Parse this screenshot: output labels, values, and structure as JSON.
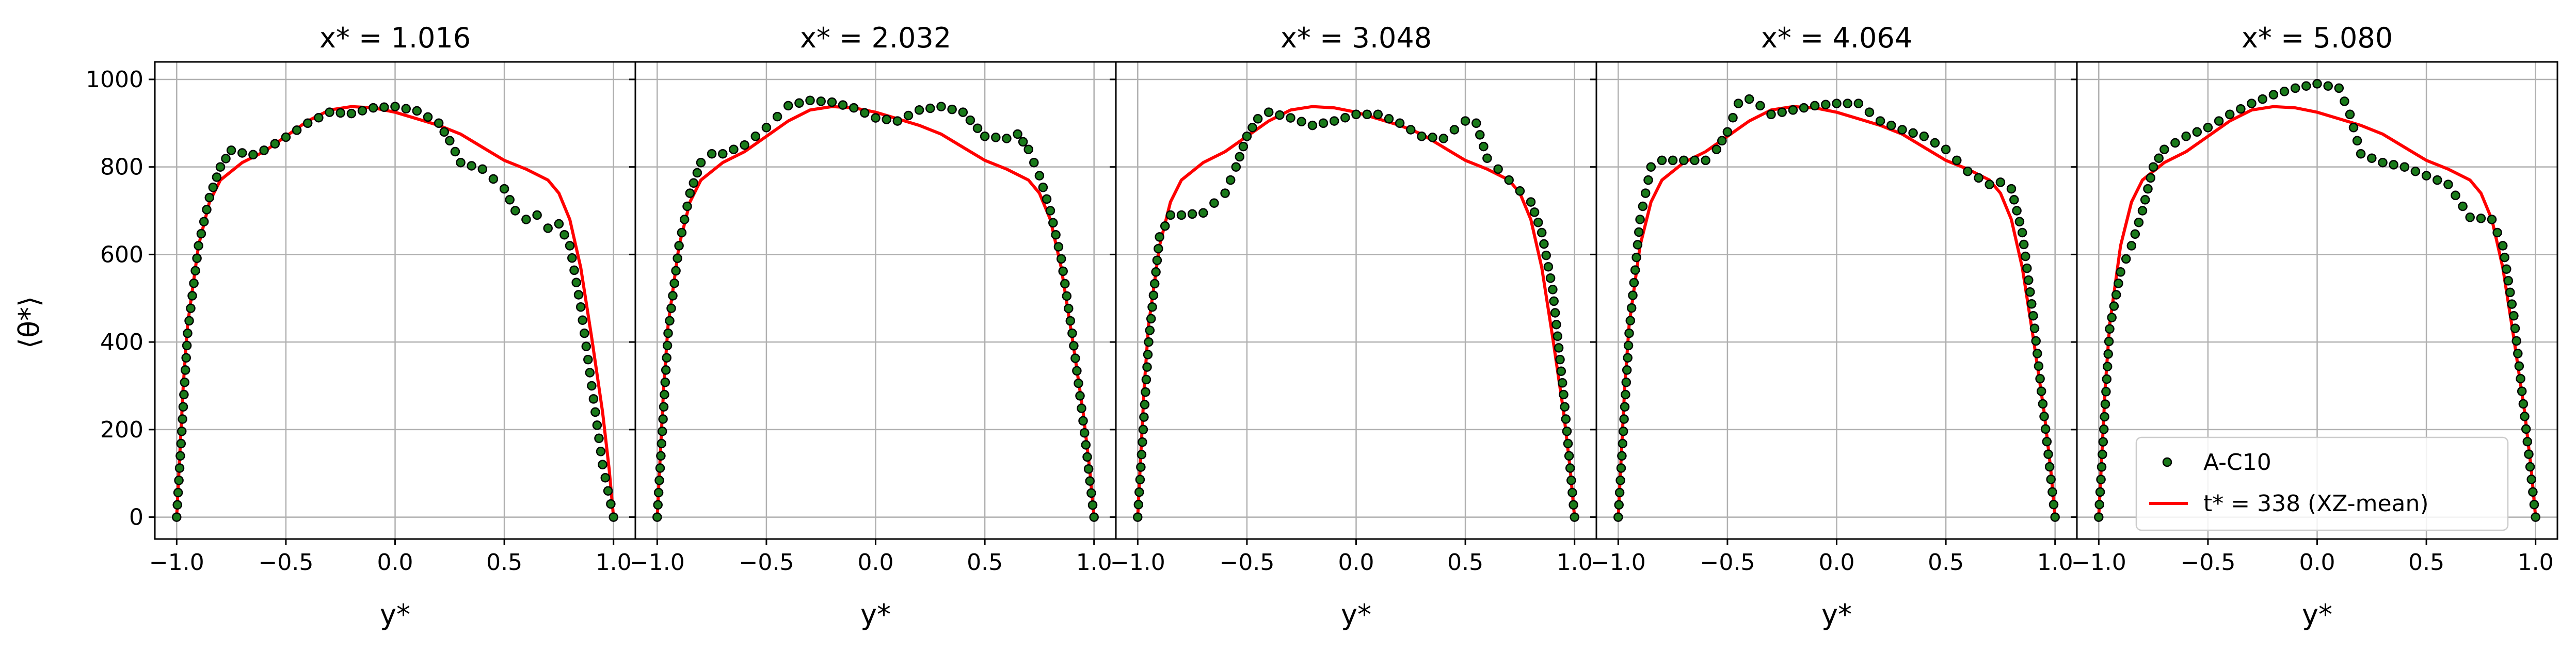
{
  "figure": {
    "ylabel": "⟨θ*⟩",
    "xlabel": "y*"
  },
  "legend": {
    "placement": "lower-right",
    "entries": [
      "A-C10",
      "t* = 338 (XZ-mean)"
    ]
  },
  "colors": {
    "points_fill": "#1a7a1a",
    "points_edge": "#000000",
    "line": "#ff0000",
    "grid": "#b0b0b0"
  },
  "chart_data": [
    {
      "type": "line",
      "title": "x* = 1.016",
      "xlabel": "y*",
      "ylabel": "⟨θ*⟩",
      "xlim": [
        -1.1,
        1.1
      ],
      "ylim": [
        -50,
        1040
      ],
      "xticks": [
        -1.0,
        -0.5,
        0.0,
        0.5,
        1.0
      ],
      "yticks": [
        0,
        200,
        400,
        600,
        800,
        1000
      ],
      "grid": true,
      "series": [
        {
          "name": "A-C10",
          "style": "points",
          "x": [
            -1.0,
            -0.95,
            -0.9,
            -0.85,
            -0.8,
            -0.75,
            -0.7,
            -0.65,
            -0.6,
            -0.5,
            -0.4,
            -0.3,
            -0.2,
            -0.1,
            0.0,
            0.1,
            0.2,
            0.25,
            0.3,
            0.4,
            0.5,
            0.55,
            0.6,
            0.65,
            0.7,
            0.75,
            0.8,
            0.85,
            0.9,
            0.95,
            1.0
          ],
          "y": [
            0,
            420,
            620,
            730,
            800,
            838,
            832,
            828,
            838,
            868,
            900,
            925,
            922,
            935,
            938,
            928,
            900,
            860,
            810,
            795,
            750,
            700,
            680,
            690,
            660,
            670,
            620,
            480,
            300,
            120,
            0
          ]
        },
        {
          "name": "t* = 338 (XZ-mean)",
          "style": "line",
          "x": [
            -1.0,
            -0.97,
            -0.95,
            -0.9,
            -0.85,
            -0.8,
            -0.7,
            -0.6,
            -0.5,
            -0.4,
            -0.3,
            -0.2,
            -0.1,
            0.0,
            0.1,
            0.2,
            0.3,
            0.4,
            0.5,
            0.6,
            0.7,
            0.75,
            0.8,
            0.85,
            0.9,
            0.95,
            0.98,
            1.0
          ],
          "y": [
            0,
            300,
            440,
            620,
            720,
            770,
            810,
            835,
            870,
            905,
            930,
            938,
            935,
            925,
            910,
            895,
            875,
            845,
            815,
            795,
            770,
            740,
            680,
            570,
            410,
            240,
            110,
            0
          ]
        }
      ]
    },
    {
      "type": "line",
      "title": "x* = 2.032",
      "xlabel": "y*",
      "xlim": [
        -1.1,
        1.1
      ],
      "ylim": [
        -50,
        1040
      ],
      "xticks": [
        -1.0,
        -0.5,
        0.0,
        0.5,
        1.0
      ],
      "grid": true,
      "series": [
        {
          "name": "A-C10",
          "style": "points",
          "x": [
            -1.0,
            -0.95,
            -0.9,
            -0.85,
            -0.8,
            -0.75,
            -0.7,
            -0.6,
            -0.5,
            -0.4,
            -0.3,
            -0.2,
            -0.1,
            0.0,
            0.1,
            0.2,
            0.3,
            0.4,
            0.5,
            0.6,
            0.65,
            0.7,
            0.75,
            0.8,
            0.85,
            0.9,
            0.95,
            1.0
          ],
          "y": [
            0,
            420,
            620,
            740,
            810,
            830,
            830,
            850,
            890,
            940,
            952,
            948,
            935,
            912,
            905,
            930,
            938,
            925,
            870,
            865,
            875,
            840,
            780,
            700,
            590,
            420,
            220,
            0
          ]
        },
        {
          "name": "t* = 338 (XZ-mean)",
          "style": "line",
          "x": [
            -1.0,
            -0.97,
            -0.95,
            -0.9,
            -0.85,
            -0.8,
            -0.7,
            -0.6,
            -0.5,
            -0.4,
            -0.3,
            -0.2,
            -0.1,
            0.0,
            0.1,
            0.2,
            0.3,
            0.4,
            0.5,
            0.6,
            0.7,
            0.75,
            0.8,
            0.85,
            0.9,
            0.95,
            0.98,
            1.0
          ],
          "y": [
            0,
            300,
            440,
            620,
            720,
            770,
            810,
            835,
            870,
            905,
            930,
            938,
            935,
            925,
            910,
            895,
            875,
            845,
            815,
            795,
            770,
            740,
            680,
            570,
            410,
            240,
            110,
            0
          ]
        }
      ]
    },
    {
      "type": "line",
      "title": "x* = 3.048",
      "xlabel": "y*",
      "xlim": [
        -1.1,
        1.1
      ],
      "ylim": [
        -50,
        1040
      ],
      "xticks": [
        -1.0,
        -0.5,
        0.0,
        0.5,
        1.0
      ],
      "grid": true,
      "series": [
        {
          "name": "A-C10",
          "style": "points",
          "x": [
            -1.0,
            -0.95,
            -0.9,
            -0.85,
            -0.8,
            -0.7,
            -0.6,
            -0.55,
            -0.5,
            -0.45,
            -0.4,
            -0.3,
            -0.2,
            -0.1,
            0.0,
            0.1,
            0.2,
            0.3,
            0.4,
            0.5,
            0.55,
            0.6,
            0.7,
            0.8,
            0.85,
            0.9,
            0.95,
            1.0
          ],
          "y": [
            0,
            400,
            640,
            690,
            690,
            695,
            740,
            800,
            870,
            910,
            925,
            912,
            895,
            905,
            920,
            920,
            900,
            870,
            865,
            905,
            900,
            820,
            770,
            720,
            650,
            520,
            280,
            0
          ]
        },
        {
          "name": "t* = 338 (XZ-mean)",
          "style": "line",
          "x": [
            -1.0,
            -0.97,
            -0.95,
            -0.9,
            -0.85,
            -0.8,
            -0.7,
            -0.6,
            -0.5,
            -0.4,
            -0.3,
            -0.2,
            -0.1,
            0.0,
            0.1,
            0.2,
            0.3,
            0.4,
            0.5,
            0.6,
            0.7,
            0.75,
            0.8,
            0.85,
            0.9,
            0.95,
            0.98,
            1.0
          ],
          "y": [
            0,
            300,
            440,
            620,
            720,
            770,
            810,
            835,
            870,
            905,
            930,
            938,
            935,
            925,
            910,
            895,
            875,
            845,
            815,
            795,
            770,
            740,
            680,
            570,
            410,
            240,
            110,
            0
          ]
        }
      ]
    },
    {
      "type": "line",
      "title": "x* = 4.064",
      "xlabel": "y*",
      "xlim": [
        -1.1,
        1.1
      ],
      "ylim": [
        -50,
        1040
      ],
      "xticks": [
        -1.0,
        -0.5,
        0.0,
        0.5,
        1.0
      ],
      "grid": true,
      "series": [
        {
          "name": "A-C10",
          "style": "points",
          "x": [
            -1.0,
            -0.95,
            -0.9,
            -0.85,
            -0.8,
            -0.7,
            -0.6,
            -0.55,
            -0.5,
            -0.45,
            -0.4,
            -0.35,
            -0.3,
            -0.2,
            -0.1,
            0.0,
            0.1,
            0.2,
            0.3,
            0.4,
            0.5,
            0.6,
            0.7,
            0.75,
            0.8,
            0.85,
            0.9,
            0.95,
            1.0
          ],
          "y": [
            0,
            420,
            680,
            800,
            815,
            815,
            815,
            840,
            880,
            945,
            955,
            940,
            920,
            930,
            940,
            945,
            945,
            905,
            885,
            870,
            840,
            790,
            760,
            765,
            750,
            650,
            460,
            230,
            0
          ]
        },
        {
          "name": "t* = 338 (XZ-mean)",
          "style": "line",
          "x": [
            -1.0,
            -0.97,
            -0.95,
            -0.9,
            -0.85,
            -0.8,
            -0.7,
            -0.6,
            -0.5,
            -0.4,
            -0.3,
            -0.2,
            -0.1,
            0.0,
            0.1,
            0.2,
            0.3,
            0.4,
            0.5,
            0.6,
            0.7,
            0.75,
            0.8,
            0.85,
            0.9,
            0.95,
            0.98,
            1.0
          ],
          "y": [
            0,
            300,
            440,
            620,
            720,
            770,
            810,
            835,
            870,
            905,
            930,
            938,
            935,
            925,
            910,
            895,
            875,
            845,
            815,
            795,
            770,
            740,
            680,
            570,
            410,
            240,
            110,
            0
          ]
        }
      ]
    },
    {
      "type": "line",
      "title": "x* = 5.080",
      "xlabel": "y*",
      "xlim": [
        -1.1,
        1.1
      ],
      "ylim": [
        -50,
        1040
      ],
      "xticks": [
        -1.0,
        -0.5,
        0.0,
        0.5,
        1.0
      ],
      "grid": true,
      "series": [
        {
          "name": "A-C10",
          "style": "points",
          "x": [
            -1.0,
            -0.95,
            -0.9,
            -0.85,
            -0.8,
            -0.75,
            -0.7,
            -0.6,
            -0.5,
            -0.4,
            -0.3,
            -0.2,
            -0.1,
            0.0,
            0.1,
            0.15,
            0.2,
            0.3,
            0.4,
            0.5,
            0.6,
            0.7,
            0.8,
            0.85,
            0.9,
            0.95,
            1.0
          ],
          "y": [
            0,
            430,
            560,
            620,
            700,
            800,
            840,
            870,
            890,
            920,
            945,
            965,
            980,
            990,
            980,
            920,
            830,
            810,
            800,
            780,
            760,
            685,
            680,
            620,
            460,
            230,
            0
          ]
        },
        {
          "name": "t* = 338 (XZ-mean)",
          "style": "line",
          "x": [
            -1.0,
            -0.97,
            -0.95,
            -0.9,
            -0.85,
            -0.8,
            -0.7,
            -0.6,
            -0.5,
            -0.4,
            -0.3,
            -0.2,
            -0.1,
            0.0,
            0.1,
            0.2,
            0.3,
            0.4,
            0.5,
            0.6,
            0.7,
            0.75,
            0.8,
            0.85,
            0.9,
            0.95,
            0.98,
            1.0
          ],
          "y": [
            0,
            300,
            440,
            620,
            720,
            770,
            810,
            835,
            870,
            905,
            930,
            938,
            935,
            925,
            910,
            895,
            875,
            845,
            815,
            795,
            770,
            740,
            680,
            570,
            410,
            240,
            110,
            0
          ]
        }
      ]
    }
  ]
}
